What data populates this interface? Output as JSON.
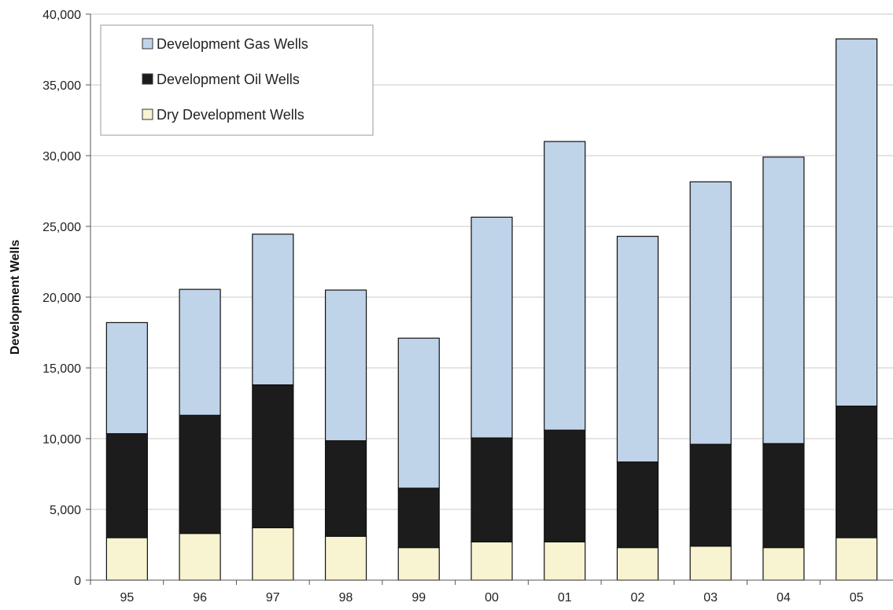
{
  "chart_data": {
    "type": "bar",
    "stacked": true,
    "title": "",
    "xlabel": "",
    "ylabel": "Development Wells",
    "ylim": [
      0,
      40000
    ],
    "yticks": [
      0,
      5000,
      10000,
      15000,
      20000,
      25000,
      30000,
      35000,
      40000
    ],
    "ytick_labels": [
      "0",
      "5,000",
      "10,000",
      "15,000",
      "20,000",
      "25,000",
      "30,000",
      "35,000",
      "40,000"
    ],
    "grid": true,
    "legend_position": "top-left",
    "categories": [
      "95",
      "96",
      "97",
      "98",
      "99",
      "00",
      "01",
      "02",
      "03",
      "04",
      "05"
    ],
    "series": [
      {
        "name": "Dry Development Wells",
        "color": "#f8f3d0",
        "values": [
          3000,
          3300,
          3700,
          3100,
          2300,
          2700,
          2700,
          2300,
          2400,
          2300,
          3000
        ]
      },
      {
        "name": "Development Oil Wells",
        "color": "#1c1c1c",
        "values": [
          7350,
          8350,
          10100,
          6750,
          4200,
          7350,
          7900,
          6050,
          7200,
          7350,
          9300
        ]
      },
      {
        "name": "Development Gas Wells",
        "color": "#bfd3e9",
        "values": [
          7850,
          8900,
          10650,
          10650,
          10600,
          15600,
          20400,
          15950,
          18550,
          20250,
          25950
        ]
      }
    ],
    "legend_order": [
      "Development Gas Wells",
      "Development Oil Wells",
      "Dry Development Wells"
    ]
  }
}
